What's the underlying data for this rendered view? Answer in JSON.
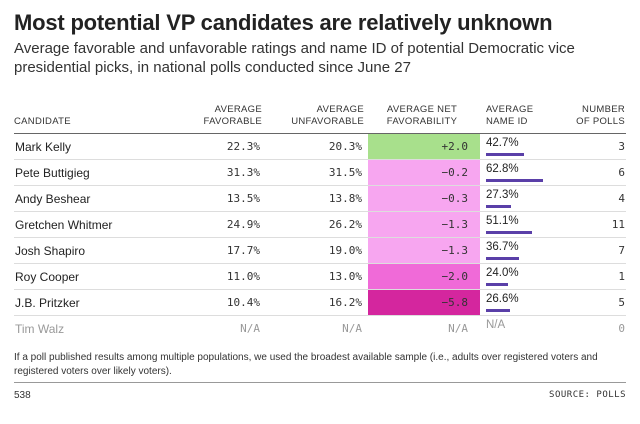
{
  "title": "Most potential VP candidates are relatively unknown",
  "subtitle": "Average favorable and unfavorable ratings and name ID of potential Democratic vice presidential picks, in national polls conducted since June 27",
  "headers": {
    "candidate": "CANDIDATE",
    "fav_1": "AVERAGE",
    "fav_2": "FAVORABLE",
    "unfav_1": "AVERAGE",
    "unfav_2": "UNFAVORABLE",
    "net_1": "AVERAGE NET",
    "net_2": "FAVORABILITY",
    "nameid_1": "AVERAGE",
    "nameid_2": "NAME ID",
    "polls_1": "NUMBER",
    "polls_2": "OF POLLS"
  },
  "colors": {
    "positive": "#a8e08c",
    "slightly_negative": "#f7a6f0",
    "moderately_negative": "#f06ad8",
    "strongly_negative": "#d4269e",
    "name_id_bar": "#5a3fa8"
  },
  "chart_data": {
    "type": "table",
    "columns": [
      "Candidate",
      "Average favorable",
      "Average unfavorable",
      "Average net favorability",
      "Average name ID",
      "Number of polls"
    ],
    "rows": [
      {
        "candidate": "Mark Kelly",
        "favorable": "22.3%",
        "unfavorable": "20.3%",
        "net": "+2.0",
        "net_value": 2.0,
        "name_id": "42.7%",
        "name_id_value": 42.7,
        "polls": "3",
        "net_color": "#a8e08c"
      },
      {
        "candidate": "Pete Buttigieg",
        "favorable": "31.3%",
        "unfavorable": "31.5%",
        "net": "−0.2",
        "net_value": -0.2,
        "name_id": "62.8%",
        "name_id_value": 62.8,
        "polls": "6",
        "net_color": "#f7a6f0"
      },
      {
        "candidate": "Andy Beshear",
        "favorable": "13.5%",
        "unfavorable": "13.8%",
        "net": "−0.3",
        "net_value": -0.3,
        "name_id": "27.3%",
        "name_id_value": 27.3,
        "polls": "4",
        "net_color": "#f7a6f0"
      },
      {
        "candidate": "Gretchen Whitmer",
        "favorable": "24.9%",
        "unfavorable": "26.2%",
        "net": "−1.3",
        "net_value": -1.3,
        "name_id": "51.1%",
        "name_id_value": 51.1,
        "polls": "11",
        "net_color": "#f7a6f0"
      },
      {
        "candidate": "Josh Shapiro",
        "favorable": "17.7%",
        "unfavorable": "19.0%",
        "net": "−1.3",
        "net_value": -1.3,
        "name_id": "36.7%",
        "name_id_value": 36.7,
        "polls": "7",
        "net_color": "#f7a6f0"
      },
      {
        "candidate": "Roy Cooper",
        "favorable": "11.0%",
        "unfavorable": "13.0%",
        "net": "−2.0",
        "net_value": -2.0,
        "name_id": "24.0%",
        "name_id_value": 24.0,
        "polls": "1",
        "net_color": "#f06ad8"
      },
      {
        "candidate": "J.B. Pritzker",
        "favorable": "10.4%",
        "unfavorable": "16.2%",
        "net": "−5.8",
        "net_value": -5.8,
        "name_id": "26.6%",
        "name_id_value": 26.6,
        "polls": "5",
        "net_color": "#d4269e"
      },
      {
        "candidate": "Tim Walz",
        "favorable": "N/A",
        "unfavorable": "N/A",
        "net": "N/A",
        "net_value": null,
        "name_id": "N/A",
        "name_id_value": null,
        "polls": "0",
        "net_color": null,
        "muted": true
      }
    ]
  },
  "footnote": "If a poll published results among multiple populations, we used the broadest available sample (i.e., adults over registered voters and registered voters over likely voters).",
  "brand": "538",
  "source": "SOURCE: POLLS"
}
